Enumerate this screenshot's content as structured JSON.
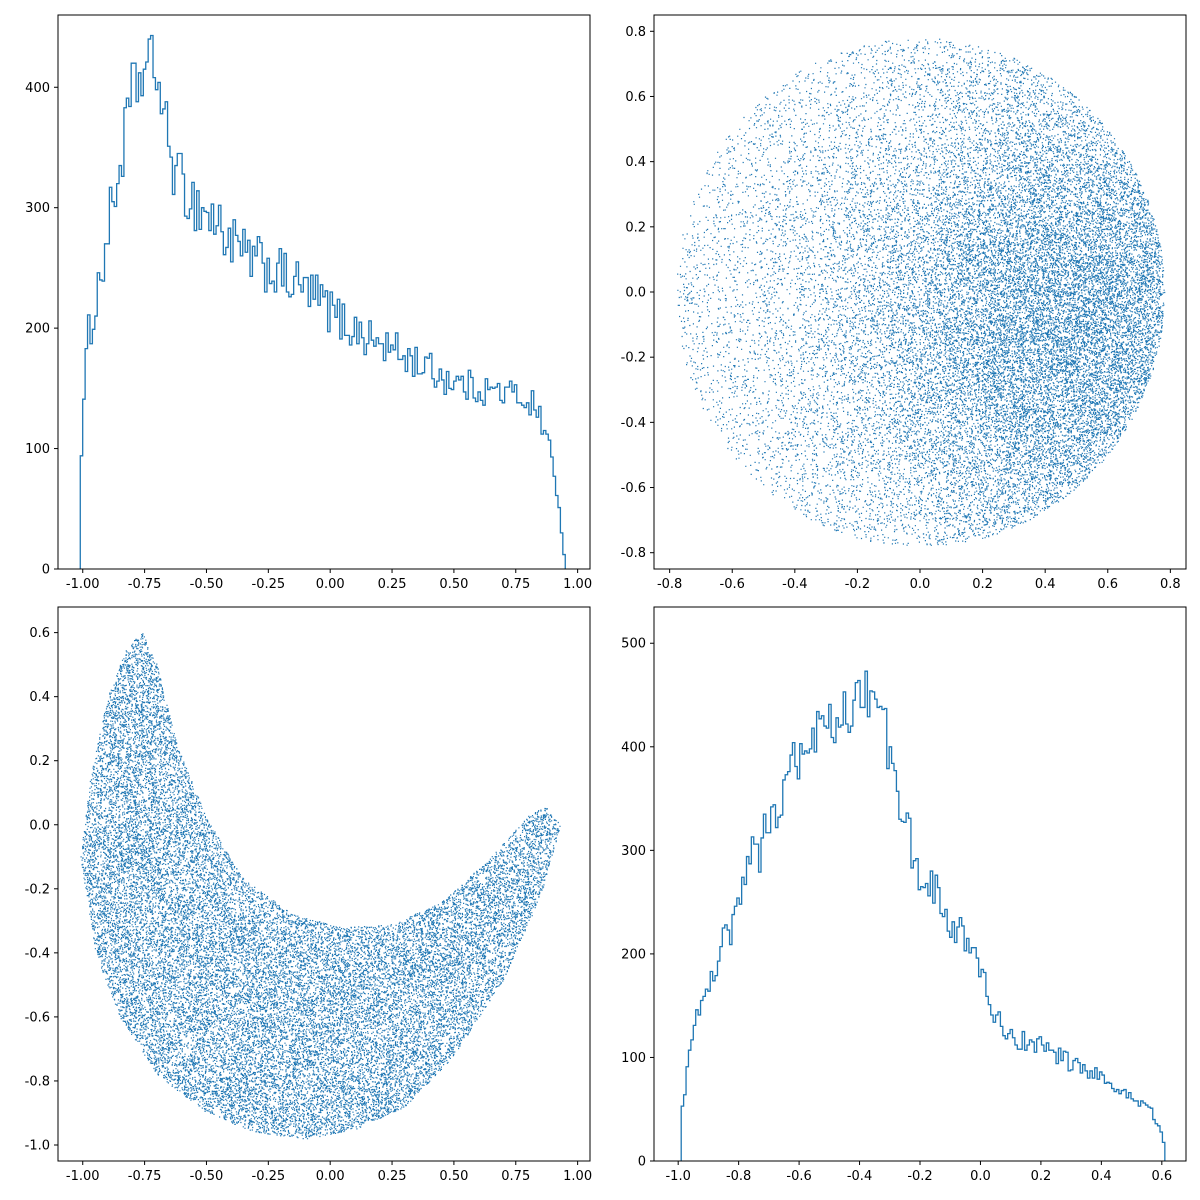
{
  "colors": {
    "series": "#1f77b4",
    "axes": "#000000",
    "background": "#ffffff"
  },
  "chart_data": [
    {
      "type": "histogram",
      "panel": "top-left",
      "title": "",
      "xlabel": "",
      "ylabel": "",
      "xlim": [
        -1.1,
        1.05
      ],
      "ylim": [
        0,
        460
      ],
      "xticks": [
        "-1.00",
        "-0.75",
        "-0.50",
        "-0.25",
        "0.00",
        "0.25",
        "0.50",
        "0.75",
        "1.00"
      ],
      "xtick_values": [
        -1.0,
        -0.75,
        -0.5,
        -0.25,
        0.0,
        0.25,
        0.5,
        0.75,
        1.0
      ],
      "yticks": [
        "0",
        "100",
        "200",
        "300",
        "400"
      ],
      "ytick_values": [
        0,
        100,
        200,
        300,
        400
      ],
      "bin_range": [
        -1.01,
        0.95
      ],
      "envelope": [
        [
          -1.01,
          85
        ],
        [
          -0.98,
          190
        ],
        [
          -0.93,
          240
        ],
        [
          -0.88,
          300
        ],
        [
          -0.84,
          345
        ],
        [
          -0.8,
          395
        ],
        [
          -0.77,
          405
        ],
        [
          -0.73,
          420
        ],
        [
          -0.7,
          415
        ],
        [
          -0.67,
          370
        ],
        [
          -0.62,
          325
        ],
        [
          -0.55,
          305
        ],
        [
          -0.45,
          285
        ],
        [
          -0.35,
          260
        ],
        [
          -0.25,
          250
        ],
        [
          -0.15,
          238
        ],
        [
          -0.05,
          225
        ],
        [
          0.05,
          205
        ],
        [
          0.15,
          192
        ],
        [
          0.25,
          182
        ],
        [
          0.35,
          172
        ],
        [
          0.45,
          160
        ],
        [
          0.55,
          152
        ],
        [
          0.65,
          148
        ],
        [
          0.75,
          145
        ],
        [
          0.82,
          138
        ],
        [
          0.86,
          120
        ],
        [
          0.89,
          100
        ],
        [
          0.91,
          70
        ],
        [
          0.93,
          45
        ],
        [
          0.95,
          0
        ]
      ],
      "bar_style": "step"
    },
    {
      "type": "scatter",
      "panel": "top-right",
      "title": "",
      "xlabel": "",
      "ylabel": "",
      "xlim": [
        -0.85,
        0.85
      ],
      "ylim": [
        -0.85,
        0.85
      ],
      "xticks": [
        "-0.8",
        "-0.6",
        "-0.4",
        "-0.2",
        "0.0",
        "0.2",
        "0.4",
        "0.6",
        "0.8"
      ],
      "xtick_values": [
        -0.8,
        -0.6,
        -0.4,
        -0.2,
        0.0,
        0.2,
        0.4,
        0.6,
        0.8
      ],
      "yticks": [
        "-0.8",
        "-0.6",
        "-0.4",
        "-0.2",
        "0.0",
        "0.2",
        "0.4",
        "0.6",
        "0.8"
      ],
      "ytick_values": [
        -0.8,
        -0.6,
        -0.4,
        -0.2,
        0.0,
        0.2,
        0.4,
        0.6,
        0.8
      ],
      "shape": {
        "kind": "disk",
        "center": [
          0.0,
          0.0
        ],
        "radius": 0.78,
        "density_peak": [
          0.5,
          -0.1
        ]
      },
      "marker_size": "pixel"
    },
    {
      "type": "scatter",
      "panel": "bottom-left",
      "title": "",
      "xlabel": "",
      "ylabel": "",
      "xlim": [
        -1.1,
        1.05
      ],
      "ylim": [
        -1.05,
        0.68
      ],
      "xticks": [
        "-1.00",
        "-0.75",
        "-0.50",
        "-0.25",
        "0.00",
        "0.25",
        "0.50",
        "0.75",
        "1.00"
      ],
      "xtick_values": [
        -1.0,
        -0.75,
        -0.5,
        -0.25,
        0.0,
        0.25,
        0.5,
        0.75,
        1.0
      ],
      "yticks": [
        "-1.0",
        "-0.8",
        "-0.6",
        "-0.4",
        "-0.2",
        "0.0",
        "0.2",
        "0.4",
        "0.6"
      ],
      "ytick_values": [
        -1.0,
        -0.8,
        -0.6,
        -0.4,
        -0.2,
        0.0,
        0.2,
        0.4,
        0.6
      ],
      "shape": {
        "kind": "crescent",
        "lower_edge": [
          [
            -1.01,
            -0.1
          ],
          [
            -0.95,
            -0.4
          ],
          [
            -0.85,
            -0.6
          ],
          [
            -0.7,
            -0.78
          ],
          [
            -0.5,
            -0.9
          ],
          [
            -0.3,
            -0.96
          ],
          [
            -0.1,
            -0.98
          ],
          [
            0.1,
            -0.95
          ],
          [
            0.3,
            -0.88
          ],
          [
            0.5,
            -0.72
          ],
          [
            0.7,
            -0.48
          ],
          [
            0.85,
            -0.22
          ],
          [
            0.93,
            0.0
          ]
        ],
        "upper_edge": [
          [
            -1.01,
            -0.1
          ],
          [
            -0.97,
            0.15
          ],
          [
            -0.9,
            0.4
          ],
          [
            -0.82,
            0.56
          ],
          [
            -0.76,
            0.6
          ],
          [
            -0.7,
            0.5
          ],
          [
            -0.62,
            0.25
          ],
          [
            -0.5,
            0.02
          ],
          [
            -0.35,
            -0.17
          ],
          [
            -0.15,
            -0.28
          ],
          [
            0.05,
            -0.32
          ],
          [
            0.25,
            -0.31
          ],
          [
            0.45,
            -0.24
          ],
          [
            0.65,
            -0.1
          ],
          [
            0.8,
            0.03
          ],
          [
            0.87,
            0.06
          ],
          [
            0.93,
            0.0
          ]
        ]
      },
      "marker_size": "pixel"
    },
    {
      "type": "histogram",
      "panel": "bottom-right",
      "title": "",
      "xlabel": "",
      "ylabel": "",
      "xlim": [
        -1.08,
        0.68
      ],
      "ylim": [
        0,
        535
      ],
      "xticks": [
        "-1.0",
        "-0.8",
        "-0.6",
        "-0.4",
        "-0.2",
        "0.0",
        "0.2",
        "0.4",
        "0.6"
      ],
      "xtick_values": [
        -1.0,
        -0.8,
        -0.6,
        -0.4,
        -0.2,
        0.0,
        0.2,
        0.4,
        0.6
      ],
      "yticks": [
        "0",
        "100",
        "200",
        "300",
        "400",
        "500"
      ],
      "ytick_values": [
        0,
        100,
        200,
        300,
        400,
        500
      ],
      "bin_range": [
        -0.99,
        0.61
      ],
      "envelope": [
        [
          -0.99,
          40
        ],
        [
          -0.96,
          110
        ],
        [
          -0.92,
          165
        ],
        [
          -0.88,
          185
        ],
        [
          -0.84,
          215
        ],
        [
          -0.8,
          250
        ],
        [
          -0.75,
          290
        ],
        [
          -0.7,
          325
        ],
        [
          -0.65,
          360
        ],
        [
          -0.6,
          390
        ],
        [
          -0.55,
          405
        ],
        [
          -0.5,
          420
        ],
        [
          -0.45,
          435
        ],
        [
          -0.4,
          440
        ],
        [
          -0.36,
          455
        ],
        [
          -0.33,
          440
        ],
        [
          -0.3,
          395
        ],
        [
          -0.26,
          345
        ],
        [
          -0.22,
          300
        ],
        [
          -0.18,
          270
        ],
        [
          -0.12,
          240
        ],
        [
          -0.05,
          215
        ],
        [
          0.0,
          180
        ],
        [
          0.05,
          140
        ],
        [
          0.1,
          120
        ],
        [
          0.2,
          110
        ],
        [
          0.3,
          95
        ],
        [
          0.4,
          80
        ],
        [
          0.5,
          60
        ],
        [
          0.56,
          50
        ],
        [
          0.59,
          35
        ],
        [
          0.61,
          10
        ]
      ],
      "bar_style": "step"
    }
  ]
}
